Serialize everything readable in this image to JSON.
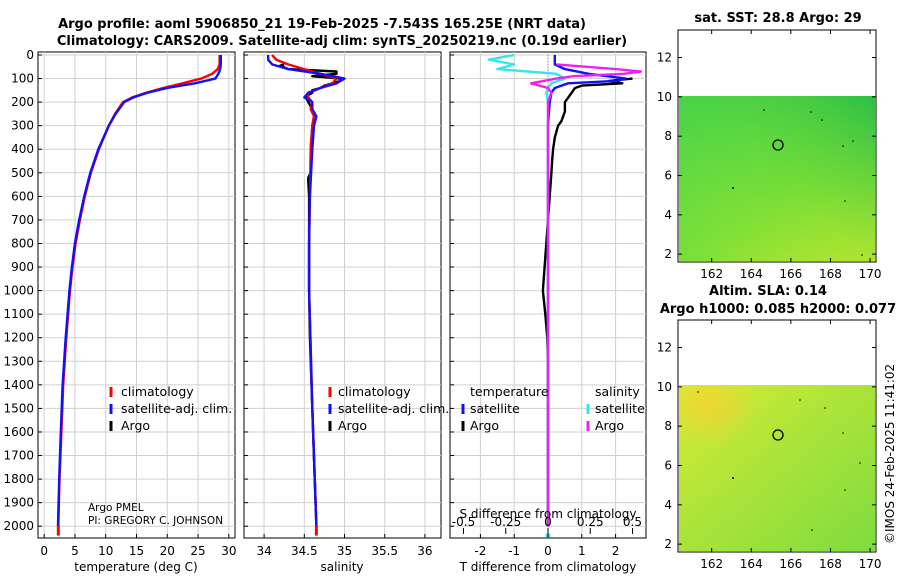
{
  "header": {
    "title_line1": "Argo profile: aoml 5906850_21 19-Feb-2025 -7.543S 165.25E (NRT data)",
    "title_line2": "Climatology: CARS2009. Satellite-adj clim: synTS_20250219.nc (0.19d earlier)"
  },
  "credit": {
    "org": "Argo PMEL",
    "pi": "PI: GREGORY C. JOHNSON"
  },
  "watermark": "©IMOS 24-Feb-2025 11:41:02",
  "colors": {
    "climatology": "#ff0000",
    "satellite": "#1010ff",
    "argo": "#000000",
    "sal_sat": "#33e6ee",
    "sal_argo": "#ee22ee"
  },
  "chart_data": [
    {
      "id": "temperature",
      "type": "line",
      "xlabel": "temperature (deg C)",
      "ylabel": "",
      "xlim": [
        -1,
        31
      ],
      "ylim": [
        2050,
        0
      ],
      "xticks": [
        0,
        5,
        10,
        15,
        20,
        25,
        30
      ],
      "yticks": [
        0,
        100,
        200,
        300,
        400,
        500,
        600,
        700,
        800,
        900,
        1000,
        1100,
        1200,
        1300,
        1400,
        1500,
        1600,
        1700,
        1800,
        1900,
        2000
      ],
      "legend": [
        "climatology",
        "satellite-adj. clim.",
        "Argo"
      ],
      "series": [
        {
          "name": "climatology",
          "depth": [
            0,
            40,
            60,
            80,
            100,
            120,
            140,
            160,
            180,
            200,
            250,
            300,
            400,
            500,
            600,
            700,
            800,
            900,
            1000,
            1200,
            1400,
            1600,
            1800,
            2000
          ],
          "values": [
            28.5,
            28.5,
            28.2,
            27.3,
            25.5,
            22.5,
            19.3,
            16.6,
            14.3,
            12.8,
            11.5,
            10.5,
            8.9,
            7.6,
            6.6,
            5.8,
            5.1,
            4.6,
            4.2,
            3.6,
            3.1,
            2.8,
            2.5,
            2.3
          ]
        },
        {
          "name": "satellite-adj. clim.",
          "depth": [
            0,
            40,
            60,
            80,
            100,
            120,
            140,
            160,
            180,
            200,
            250,
            300,
            400,
            500,
            600,
            700,
            800,
            900,
            1000,
            1200,
            1400,
            1600,
            1800,
            2000
          ],
          "values": [
            28.7,
            28.7,
            28.6,
            28.3,
            27.8,
            24.5,
            20.0,
            16.8,
            14.5,
            13.0,
            11.6,
            10.5,
            8.8,
            7.5,
            6.5,
            5.7,
            5.0,
            4.5,
            4.1,
            3.5,
            3.0,
            2.7,
            2.45,
            2.25
          ]
        },
        {
          "name": "Argo",
          "depth": [],
          "values": []
        }
      ]
    },
    {
      "id": "salinity",
      "type": "line",
      "xlabel": "salinity",
      "ylabel": "",
      "xlim": [
        33.75,
        36.2
      ],
      "ylim": [
        2050,
        0
      ],
      "xticks": [
        34,
        34.5,
        35,
        35.5,
        36
      ],
      "legend": [
        "climatology",
        "satellite-adj. clim.",
        "Argo"
      ],
      "series": [
        {
          "name": "climatology",
          "depth": [
            0,
            20,
            40,
            60,
            80,
            100,
            120,
            140,
            160,
            180,
            200,
            230,
            260,
            300,
            400,
            600,
            800,
            1000,
            1500,
            2000
          ],
          "values": [
            34.1,
            34.15,
            34.3,
            34.5,
            34.7,
            34.9,
            34.85,
            34.7,
            34.55,
            34.55,
            34.6,
            34.58,
            34.62,
            34.6,
            34.58,
            34.57,
            34.56,
            34.56,
            34.6,
            34.65
          ]
        },
        {
          "name": "satellite-adj. clim.",
          "depth": [
            0,
            20,
            40,
            60,
            80,
            100,
            120,
            140,
            160,
            180,
            200,
            230,
            260,
            300,
            400,
            600,
            800,
            1000,
            1500,
            2000
          ],
          "values": [
            34.05,
            34.05,
            34.1,
            34.3,
            34.7,
            35.0,
            34.9,
            34.7,
            34.55,
            34.5,
            34.6,
            34.6,
            34.65,
            34.62,
            34.6,
            34.57,
            34.56,
            34.56,
            34.6,
            34.65
          ]
        },
        {
          "name": "Argo",
          "depth": [
            40,
            45,
            60,
            70,
            80,
            90,
            100,
            110,
            120,
            130,
            140,
            150,
            160,
            170,
            180,
            200,
            230,
            260,
            300,
            400,
            500,
            520,
            540,
            600,
            700,
            800,
            1000,
            1200,
            1500,
            2000
          ],
          "values": [
            34.25,
            34.2,
            34.3,
            34.9,
            34.9,
            34.6,
            34.95,
            34.95,
            34.85,
            34.75,
            34.7,
            34.6,
            34.6,
            34.55,
            34.52,
            34.55,
            34.6,
            34.62,
            34.6,
            34.58,
            34.58,
            34.55,
            34.55,
            34.56,
            34.56,
            34.56,
            34.56,
            34.57,
            34.6,
            34.65
          ]
        }
      ]
    },
    {
      "id": "difference",
      "type": "line",
      "xlabel": "T difference from climatology",
      "xlabel_top": "S difference from climatology",
      "xlim": [
        -2.9,
        2.9
      ],
      "ylim": [
        2050,
        0
      ],
      "xticks": [
        -2,
        -1,
        0,
        1,
        2
      ],
      "xticks_top": [
        -0.5,
        -0.25,
        0,
        0.25,
        0.5
      ],
      "xticks_top_labels": [
        "-0.5",
        "-0.25",
        "0",
        "0.25",
        "0.5"
      ],
      "legend_left_title": "temperature",
      "legend_right_title": "salinity",
      "legend_left": [
        "satellite",
        "Argo"
      ],
      "legend_right": [
        "satellite",
        "Argo"
      ],
      "series": [
        {
          "name": "T satellite",
          "depth": [
            0,
            40,
            60,
            80,
            100,
            110,
            120,
            140,
            160,
            200,
            300,
            500,
            1000,
            2000
          ],
          "values": [
            0.2,
            0.2,
            0.5,
            1.2,
            2.3,
            2.0,
            0.6,
            0.2,
            0.1,
            0.05,
            0.0,
            0.0,
            0.0,
            0.0
          ]
        },
        {
          "name": "T Argo",
          "depth": [
            100,
            110,
            120,
            130,
            140,
            160,
            180,
            200,
            240,
            280,
            300,
            350,
            400,
            450,
            500,
            600,
            700,
            800,
            900,
            1000,
            1100,
            1200,
            1300,
            1500,
            1800,
            2000
          ],
          "values": [
            2.5,
            1.8,
            2.2,
            1.0,
            0.8,
            0.7,
            0.6,
            0.5,
            0.5,
            0.4,
            0.3,
            0.2,
            0.15,
            0.12,
            0.1,
            0.05,
            0.0,
            -0.05,
            -0.1,
            -0.15,
            -0.08,
            -0.02,
            0.0,
            0.0,
            0.0,
            0.0
          ]
        },
        {
          "name": "S satellite",
          "depth": [
            0,
            20,
            40,
            60,
            80,
            100,
            120,
            140,
            160,
            200,
            300,
            600,
            1000,
            2000
          ],
          "values": [
            -0.2,
            -0.35,
            -0.2,
            -0.3,
            0.05,
            0.1,
            0.02,
            0.0,
            -0.01,
            0.0,
            0.0,
            0.0,
            0.0,
            0.0
          ]
        },
        {
          "name": "S Argo",
          "depth": [
            40,
            60,
            70,
            80,
            90,
            100,
            120,
            140,
            160,
            200,
            300,
            500,
            1000,
            2000
          ],
          "values": [
            0.05,
            0.4,
            0.55,
            0.45,
            0.15,
            0.05,
            -0.1,
            0.0,
            0.02,
            0.0,
            0.0,
            0.0,
            0.0,
            0.0
          ]
        }
      ]
    },
    {
      "id": "sst_map",
      "type": "heatmap",
      "title": "sat. SST: 28.8 Argo: 29",
      "xticks": [
        162,
        164,
        166,
        168,
        170
      ],
      "yticks": [
        2,
        4,
        6,
        8,
        10,
        12
      ],
      "xlim": [
        160.3,
        170.3
      ],
      "ylim": [
        1.6,
        13.4
      ],
      "data_ymax": 10,
      "float": {
        "lon": 165.25,
        "lat": 7.5
      }
    },
    {
      "id": "sla_map",
      "type": "heatmap",
      "title": "Altim. SLA: 0.14",
      "subtitle": "Argo h1000: 0.085 h2000: 0.077",
      "xticks": [
        162,
        164,
        166,
        168,
        170
      ],
      "yticks": [
        2,
        4,
        6,
        8,
        10,
        12
      ],
      "xlim": [
        160.3,
        170.3
      ],
      "ylim": [
        1.6,
        13.4
      ],
      "data_ymax": 10,
      "float": {
        "lon": 165.25,
        "lat": 7.5
      }
    }
  ]
}
